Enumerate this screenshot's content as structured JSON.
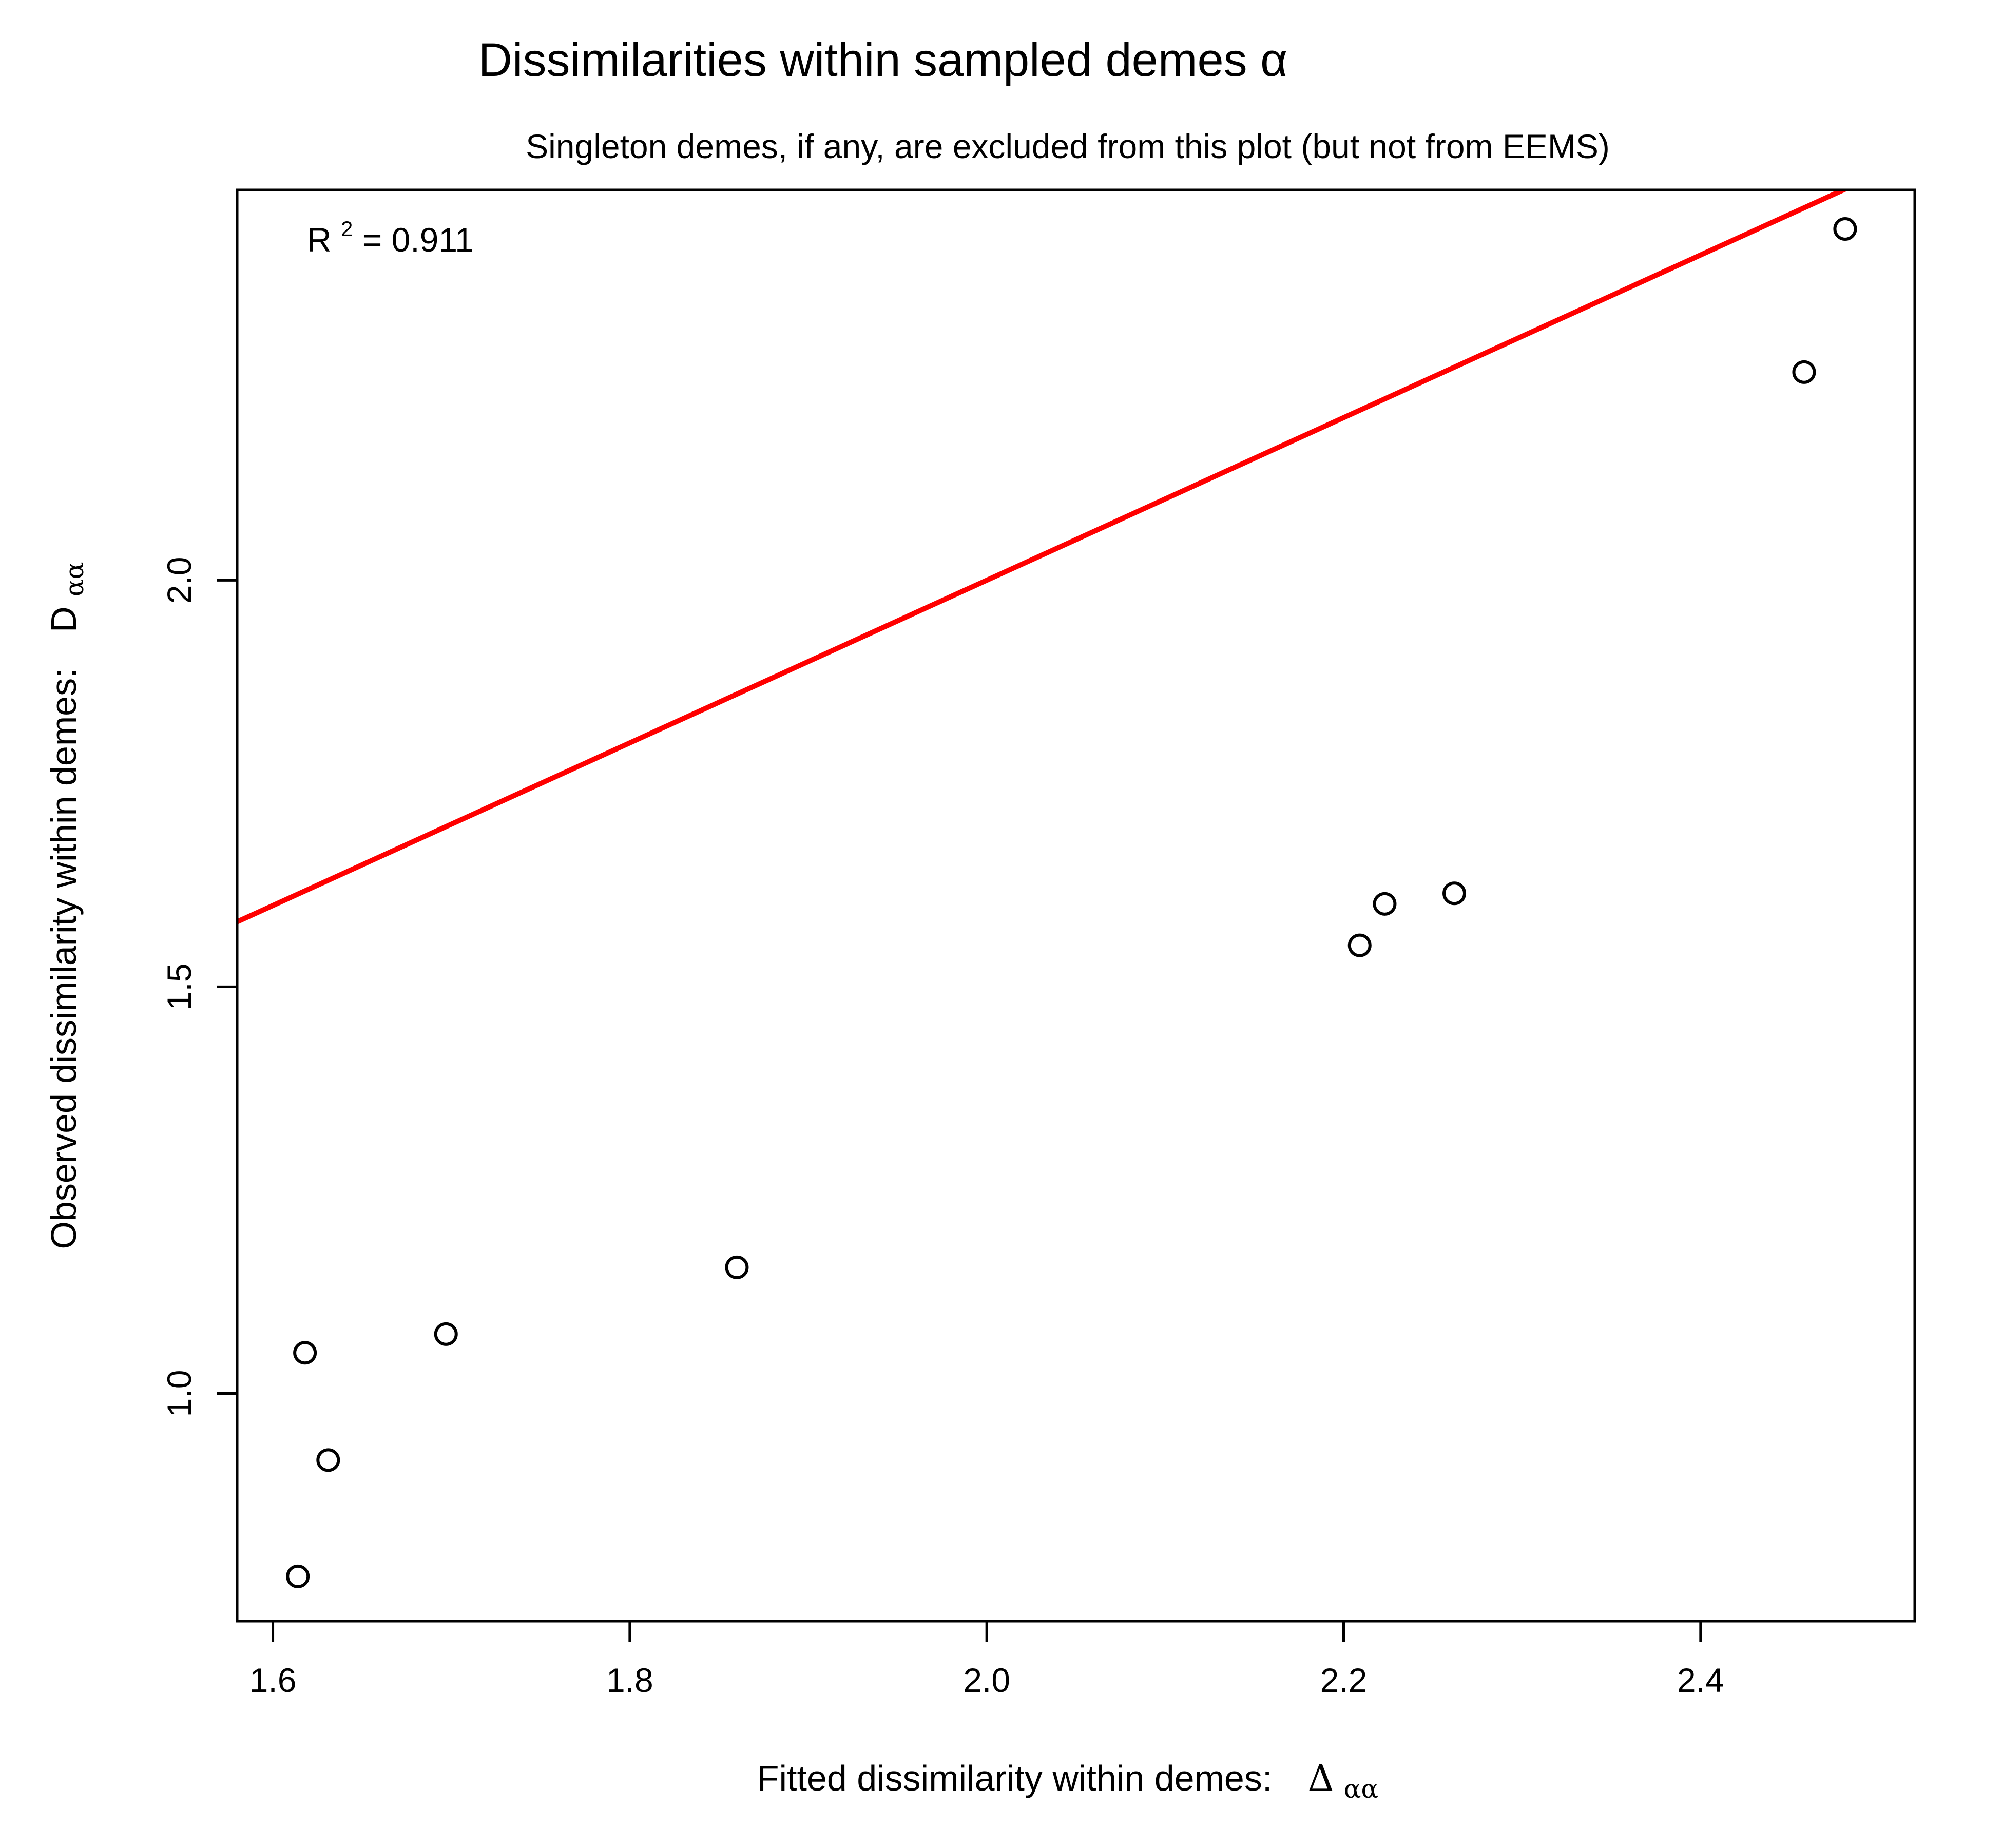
{
  "chart_data": {
    "type": "scatter",
    "title": "Dissimilarities within sampled demes α",
    "subtitle": "Singleton demes, if any, are excluded from this plot (but not from EEMS)",
    "xlabel": {
      "text": "Fitted dissimilarity within demes:",
      "symbol": "Δ",
      "subscript": "αα"
    },
    "ylabel": {
      "text": "Observed dissimilarity within demes:",
      "symbol": "D",
      "subscript": "αα"
    },
    "annotation": {
      "label": "R",
      "superscript": "2",
      "value": " = 0.911"
    },
    "xlim": [
      1.58,
      2.52
    ],
    "ylim": [
      0.72,
      2.48
    ],
    "x_ticks": [
      1.6,
      1.8,
      2.0,
      2.2,
      2.4
    ],
    "x_tick_labels": [
      "1.6",
      "1.8",
      "2.0",
      "2.2",
      "2.4"
    ],
    "y_ticks": [
      1.0,
      1.5,
      2.0
    ],
    "y_tick_labels": [
      "1.0",
      "1.5",
      "2.0"
    ],
    "grid": false,
    "reference_line": {
      "slope": 1,
      "intercept": 0,
      "color": "#ff0000"
    },
    "points": [
      {
        "x": 1.614,
        "y": 0.775
      },
      {
        "x": 1.618,
        "y": 1.05
      },
      {
        "x": 1.631,
        "y": 0.918
      },
      {
        "x": 1.697,
        "y": 1.073
      },
      {
        "x": 1.86,
        "y": 1.155
      },
      {
        "x": 2.209,
        "y": 1.551
      },
      {
        "x": 2.223,
        "y": 1.602
      },
      {
        "x": 2.262,
        "y": 1.615
      },
      {
        "x": 2.458,
        "y": 2.256
      },
      {
        "x": 2.481,
        "y": 2.432
      }
    ]
  }
}
